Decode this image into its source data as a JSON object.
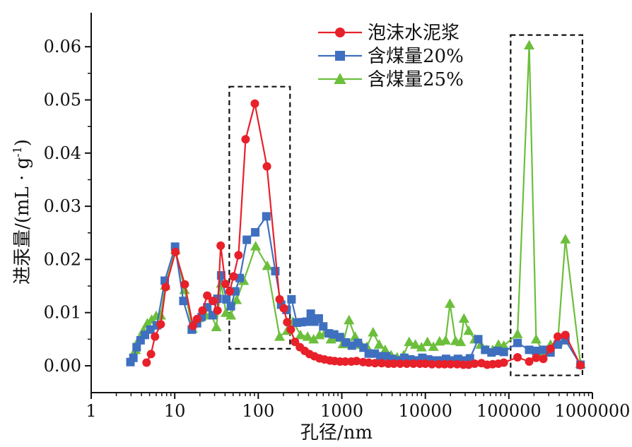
{
  "chart_data": {
    "type": "line",
    "xscale": "log",
    "xlabel": "孔径/nm",
    "ylabel": "进汞量/(mL · g",
    "ylabel_sup": "-1",
    "ylabel_end": ")",
    "xlim": [
      1,
      1000000
    ],
    "ylim": [
      0,
      0.065
    ],
    "xticks": [
      1,
      10,
      100,
      1000,
      10000,
      100000,
      1000000
    ],
    "xtick_labels": [
      "1",
      "10",
      "100",
      "1000",
      "10000",
      "100000",
      "1000000"
    ],
    "yticks": [
      0.0,
      0.01,
      0.02,
      0.03,
      0.04,
      0.05,
      0.06
    ],
    "ytick_labels": [
      "0.00",
      "0.01",
      "0.02",
      "0.03",
      "0.04",
      "0.05",
      "0.06"
    ],
    "legend_position": "top-right",
    "highlight_boxes": [
      {
        "x": [
          45,
          240
        ],
        "y": [
          0.0032,
          0.0525
        ]
      },
      {
        "x": [
          105000,
          760000
        ],
        "y": [
          -0.0018,
          0.0622
        ]
      }
    ],
    "series": [
      {
        "name": "泡沫水泥浆",
        "color": "#e8202a",
        "marker": "circle",
        "points": [
          [
            4.6,
            0.0006
          ],
          [
            5.2,
            0.0022
          ],
          [
            5.8,
            0.0055
          ],
          [
            6.8,
            0.0078
          ],
          [
            7.8,
            0.0148
          ],
          [
            10.2,
            0.0214
          ],
          [
            13.2,
            0.0153
          ],
          [
            16.5,
            0.0075
          ],
          [
            18.5,
            0.0088
          ],
          [
            21.5,
            0.0104
          ],
          [
            24.5,
            0.0132
          ],
          [
            28.5,
            0.0122
          ],
          [
            32.5,
            0.0104
          ],
          [
            35.5,
            0.0226
          ],
          [
            40.5,
            0.0154
          ],
          [
            45.5,
            0.014
          ],
          [
            50.5,
            0.0168
          ],
          [
            58,
            0.0208
          ],
          [
            70.5,
            0.0426
          ],
          [
            91,
            0.0493
          ],
          [
            127,
            0.0375
          ],
          [
            180,
            0.0125
          ],
          [
            202,
            0.0108
          ],
          [
            222,
            0.0082
          ],
          [
            245,
            0.0068
          ],
          [
            275,
            0.0045
          ],
          [
            315,
            0.0035
          ],
          [
            360,
            0.0028
          ],
          [
            410,
            0.0022
          ],
          [
            470,
            0.0018
          ],
          [
            540,
            0.0014
          ],
          [
            620,
            0.0012
          ],
          [
            720,
            0.001
          ],
          [
            820,
            0.0009
          ],
          [
            950,
            0.0008
          ],
          [
            1100,
            0.0008
          ],
          [
            1300,
            0.0008
          ],
          [
            1500,
            0.0009
          ],
          [
            1800,
            0.0007
          ],
          [
            2100,
            0.0006
          ],
          [
            2500,
            0.0005
          ],
          [
            3000,
            0.0005
          ],
          [
            3600,
            0.0004
          ],
          [
            4200,
            0.0004
          ],
          [
            5000,
            0.0004
          ],
          [
            6000,
            0.0004
          ],
          [
            7200,
            0.0004
          ],
          [
            8600,
            0.0004
          ],
          [
            10000,
            0.0004
          ],
          [
            12000,
            0.0003
          ],
          [
            14500,
            0.0003
          ],
          [
            17000,
            0.0003
          ],
          [
            20000,
            0.0003
          ],
          [
            24000,
            0.0003
          ],
          [
            28500,
            0.0002
          ],
          [
            33000,
            0.0002
          ],
          [
            39000,
            0.0004
          ],
          [
            47000,
            0.0005
          ],
          [
            55000,
            0.0002
          ],
          [
            64000,
            0.0003
          ],
          [
            75000,
            0.0004
          ],
          [
            87000,
            0.0006
          ],
          [
            127000,
            0.0016
          ],
          [
            175000,
            0.0008
          ],
          [
            212000,
            0.0015
          ],
          [
            258000,
            0.0013
          ],
          [
            315000,
            0.0032
          ],
          [
            385000,
            0.0055
          ],
          [
            475000,
            0.0058
          ],
          [
            720000,
            0.0001
          ]
        ]
      },
      {
        "name": "含煤量20%",
        "color": "#3f6fbf",
        "marker": "square",
        "points": [
          [
            2.95,
            0.0007
          ],
          [
            3.2,
            0.0015
          ],
          [
            3.5,
            0.0035
          ],
          [
            3.9,
            0.0048
          ],
          [
            4.4,
            0.0058
          ],
          [
            5.1,
            0.0068
          ],
          [
            6.1,
            0.0076
          ],
          [
            7.6,
            0.016
          ],
          [
            10.1,
            0.0224
          ],
          [
            12.7,
            0.0122
          ],
          [
            16.0,
            0.0068
          ],
          [
            18.5,
            0.008
          ],
          [
            21.0,
            0.0092
          ],
          [
            24.5,
            0.011
          ],
          [
            28.5,
            0.0095
          ],
          [
            32.5,
            0.0126
          ],
          [
            36.0,
            0.017
          ],
          [
            41.5,
            0.0125
          ],
          [
            47.0,
            0.0112
          ],
          [
            53.0,
            0.014
          ],
          [
            60.0,
            0.0165
          ],
          [
            73.0,
            0.0237
          ],
          [
            92.0,
            0.0251
          ],
          [
            125.0,
            0.0281
          ],
          [
            160.0,
            0.0178
          ],
          [
            188.0,
            0.0115
          ],
          [
            218.0,
            0.0105
          ],
          [
            250.0,
            0.0125
          ],
          [
            290.0,
            0.0081
          ],
          [
            330.0,
            0.0082
          ],
          [
            380.0,
            0.0083
          ],
          [
            425.0,
            0.0098
          ],
          [
            470.0,
            0.0083
          ],
          [
            530.0,
            0.0089
          ],
          [
            600.0,
            0.0074
          ],
          [
            700.0,
            0.0061
          ],
          [
            810.0,
            0.0059
          ],
          [
            950.0,
            0.0054
          ],
          [
            1120.0,
            0.0044
          ],
          [
            1320.0,
            0.0038
          ],
          [
            1560.0,
            0.0043
          ],
          [
            1820.0,
            0.0034
          ],
          [
            2100.0,
            0.0023
          ],
          [
            2480.0,
            0.0023
          ],
          [
            2900.0,
            0.0018
          ],
          [
            3400.0,
            0.0018
          ],
          [
            4000.0,
            0.0013
          ],
          [
            4700.0,
            0.001
          ],
          [
            5600.0,
            0.0015
          ],
          [
            6600.0,
            0.0012
          ],
          [
            7800.0,
            0.001
          ],
          [
            9200.0,
            0.0015
          ],
          [
            10800.0,
            0.0012
          ],
          [
            12800.0,
            0.001
          ],
          [
            15000.0,
            0.001
          ],
          [
            17700.0,
            0.0013
          ],
          [
            20900.0,
            0.001
          ],
          [
            24600.0,
            0.0013
          ],
          [
            29000.0,
            0.001
          ],
          [
            34200.0,
            0.0014
          ],
          [
            43000.0,
            0.005
          ],
          [
            52000,
            0.003
          ],
          [
            62000,
            0.0025
          ],
          [
            73000,
            0.0028
          ],
          [
            87000,
            0.0026
          ],
          [
            127000,
            0.0043
          ],
          [
            175000,
            0.003
          ],
          [
            212000,
            0.0028
          ],
          [
            258000,
            0.003
          ],
          [
            315000,
            0.0025
          ],
          [
            385000,
            0.004
          ],
          [
            475000,
            0.0048
          ],
          [
            720000,
            0.0002
          ]
        ]
      },
      {
        "name": "含煤量25%",
        "color": "#6cbf3c",
        "marker": "triangle",
        "points": [
          [
            3.4,
            0.003
          ],
          [
            3.75,
            0.005
          ],
          [
            4.2,
            0.0066
          ],
          [
            4.7,
            0.008
          ],
          [
            5.3,
            0.0087
          ],
          [
            6.0,
            0.0094
          ],
          [
            6.8,
            0.0095
          ],
          [
            7.7,
            0.0151
          ],
          [
            10.2,
            0.0218
          ],
          [
            13.1,
            0.0143
          ],
          [
            16.3,
            0.007
          ],
          [
            19.5,
            0.009
          ],
          [
            23.5,
            0.0095
          ],
          [
            27.0,
            0.0098
          ],
          [
            31.5,
            0.0073
          ],
          [
            36.0,
            0.0155
          ],
          [
            41.0,
            0.01
          ],
          [
            47.0,
            0.0095
          ],
          [
            55.0,
            0.0124
          ],
          [
            67.0,
            0.016
          ],
          [
            93.0,
            0.0225
          ],
          [
            128.0,
            0.0188
          ],
          [
            180.0,
            0.0055
          ],
          [
            222.0,
            0.0066
          ],
          [
            260.0,
            0.0083
          ],
          [
            320.0,
            0.0058
          ],
          [
            390.0,
            0.0055
          ],
          [
            460.0,
            0.005
          ],
          [
            540.0,
            0.0058
          ],
          [
            630.0,
            0.0062
          ],
          [
            740.0,
            0.005
          ],
          [
            870.0,
            0.0053
          ],
          [
            1030.0,
            0.0041
          ],
          [
            1220.0,
            0.0086
          ],
          [
            1440.0,
            0.0055
          ],
          [
            1700.0,
            0.004
          ],
          [
            2000.0,
            0.0036
          ],
          [
            2370.0,
            0.0063
          ],
          [
            2800.0,
            0.004
          ],
          [
            3300.0,
            0.003
          ],
          [
            3900.0,
            0.002
          ],
          [
            4600.0,
            0.0016
          ],
          [
            5500.0,
            0.002
          ],
          [
            6400.0,
            0.0045
          ],
          [
            7600.0,
            0.004
          ],
          [
            9000.0,
            0.0035
          ],
          [
            10600.0,
            0.0045
          ],
          [
            12500.0,
            0.0036
          ],
          [
            14800.0,
            0.0046
          ],
          [
            17500.0,
            0.0048
          ],
          [
            19700.0,
            0.0117
          ],
          [
            23000.0,
            0.0047
          ],
          [
            26500.0,
            0.0045
          ],
          [
            29000.0,
            0.0089
          ],
          [
            33000.0,
            0.0066
          ],
          [
            39000.0,
            0.005
          ],
          [
            46000.0,
            0.004
          ],
          [
            54000.0,
            0.003
          ],
          [
            64000.0,
            0.003
          ],
          [
            75000.0,
            0.004
          ],
          [
            87000,
            0.0038
          ],
          [
            127000,
            0.006
          ],
          [
            175000,
            0.0603
          ],
          [
            212000,
            0.005
          ],
          [
            258000,
            0.0025
          ],
          [
            315000,
            0.004
          ],
          [
            385000,
            0.0045
          ],
          [
            475000,
            0.0238
          ],
          [
            720000,
            0.0004
          ]
        ]
      }
    ]
  }
}
